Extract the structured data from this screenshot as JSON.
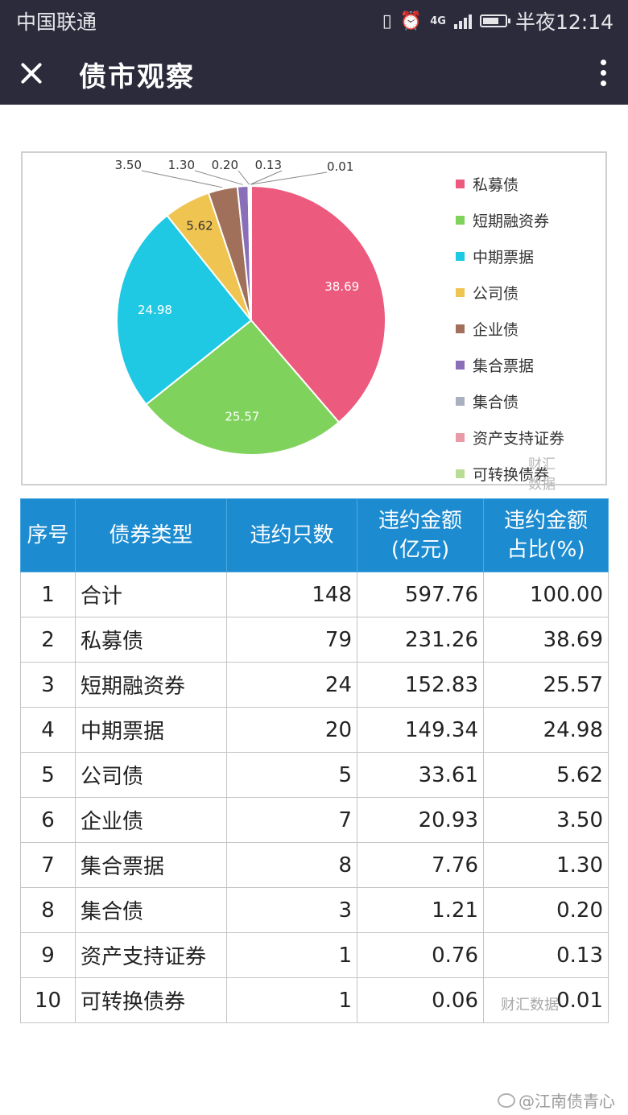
{
  "status_bar": {
    "carrier": "中国联通",
    "network": "4G",
    "time": "半夜12:14"
  },
  "app_bar": {
    "title": "债市观察"
  },
  "chart_data": {
    "type": "pie",
    "categories": [
      "私募债",
      "短期融资券",
      "中期票据",
      "公司债",
      "企业债",
      "集合票据",
      "集合债",
      "资产支持证券",
      "可转换债券"
    ],
    "values": [
      38.69,
      25.57,
      24.98,
      5.62,
      3.5,
      1.3,
      0.2,
      0.13,
      0.01
    ],
    "value_labels": [
      "38.69",
      "25.57",
      "24.98",
      "5.62",
      "3.50",
      "1.30",
      "0.20",
      "0.13",
      "0.01"
    ],
    "colors": [
      "#ec5a7d",
      "#7fd25c",
      "#1fc8e3",
      "#f0c451",
      "#a0705a",
      "#8a6fb8",
      "#a9b0bf",
      "#e89ba6",
      "#b9dd97"
    ],
    "legend_position": "right",
    "watermark": "财汇数据"
  },
  "table": {
    "headers": [
      [
        "序号"
      ],
      [
        "债券类型"
      ],
      [
        "违约只数"
      ],
      [
        "违约金额",
        "(亿元)"
      ],
      [
        "违约金额",
        "占比(%)"
      ]
    ],
    "rows": [
      [
        "1",
        "合计",
        "148",
        "597.76",
        "100.00"
      ],
      [
        "2",
        "私募债",
        "79",
        "231.26",
        "38.69"
      ],
      [
        "3",
        "短期融资券",
        "24",
        "152.83",
        "25.57"
      ],
      [
        "4",
        "中期票据",
        "20",
        "149.34",
        "24.98"
      ],
      [
        "5",
        "公司债",
        "5",
        "33.61",
        "5.62"
      ],
      [
        "6",
        "企业债",
        "7",
        "20.93",
        "3.50"
      ],
      [
        "7",
        "集合票据",
        "8",
        "7.76",
        "1.30"
      ],
      [
        "8",
        "集合债",
        "3",
        "1.21",
        "0.20"
      ],
      [
        "9",
        "资产支持证券",
        "1",
        "0.76",
        "0.13"
      ],
      [
        "10",
        "可转换债券",
        "1",
        "0.06",
        "0.01"
      ]
    ],
    "watermark": "财汇数据"
  },
  "footer": {
    "weibo_handle": "@江南债青心"
  }
}
